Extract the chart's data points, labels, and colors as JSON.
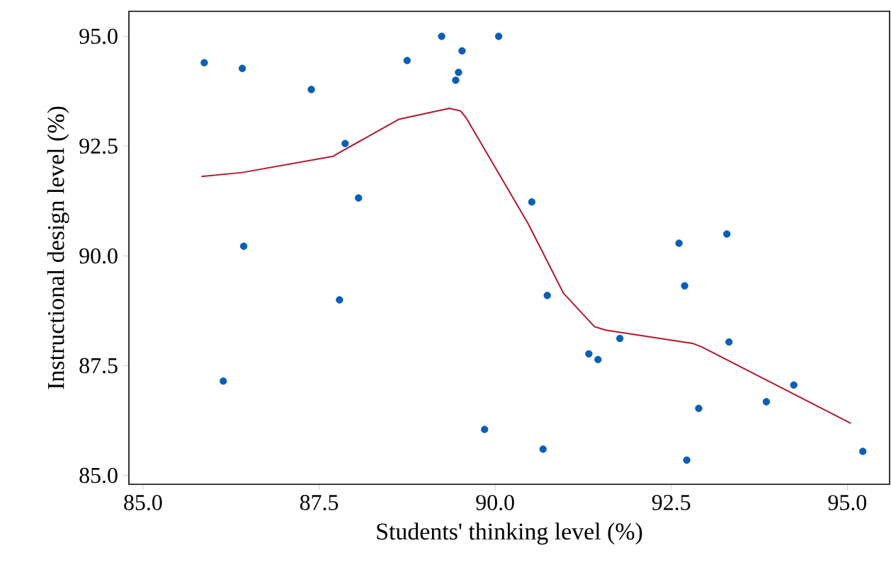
{
  "chart_data": {
    "type": "scatter",
    "xlabel": "Students' thinking level (%)",
    "ylabel": "Instructional design level (%)",
    "xlim": [
      84.8,
      95.6
    ],
    "ylim": [
      84.8,
      95.57
    ],
    "xticks": [
      {
        "value": 85,
        "label": "85.0"
      },
      {
        "value": 87.5,
        "label": "87.5"
      },
      {
        "value": 90,
        "label": "90.0"
      },
      {
        "value": 92.5,
        "label": "92.5"
      },
      {
        "value": 95,
        "label": "95.0"
      }
    ],
    "yticks": [
      {
        "value": 85,
        "label": "85.0"
      },
      {
        "value": 87.5,
        "label": "87.5"
      },
      {
        "value": 90,
        "label": "90.0"
      },
      {
        "value": 92.5,
        "label": "92.5"
      },
      {
        "value": 95,
        "label": "95.0"
      }
    ],
    "grid": false,
    "series": [
      {
        "marker": "circle",
        "color": "#0a5fb4",
        "x": [
          85.87,
          86.41,
          87.39,
          87.87,
          88.06,
          86.43,
          87.79,
          86.14,
          88.75,
          89.24,
          89.53,
          89.48,
          89.44,
          90.05,
          89.85,
          90.52,
          90.74,
          90.68,
          91.33,
          91.46,
          91.77,
          92.61,
          92.69,
          93.29,
          93.32,
          92.89,
          92.72,
          93.85,
          94.24,
          95.22
        ],
        "values": [
          94.4,
          94.27,
          93.79,
          92.56,
          91.32,
          90.22,
          89.0,
          87.15,
          94.45,
          95.0,
          94.67,
          94.18,
          94.0,
          95.0,
          86.05,
          91.23,
          89.1,
          85.6,
          87.77,
          87.64,
          88.12,
          90.29,
          89.32,
          90.5,
          88.04,
          86.53,
          85.35,
          86.68,
          87.06,
          85.55
        ]
      },
      {
        "type": "line",
        "marker": "none",
        "color": "#b2182b",
        "x": [
          85.83,
          86.41,
          87.7,
          87.83,
          88.63,
          89.35,
          89.51,
          89.59,
          90.47,
          90.97,
          91.41,
          91.57,
          92.8,
          92.93,
          95.05
        ],
        "values": [
          91.81,
          91.9,
          92.27,
          92.39,
          93.11,
          93.36,
          93.3,
          93.14,
          90.73,
          89.15,
          88.39,
          88.31,
          88.01,
          87.93,
          86.19
        ]
      }
    ]
  }
}
